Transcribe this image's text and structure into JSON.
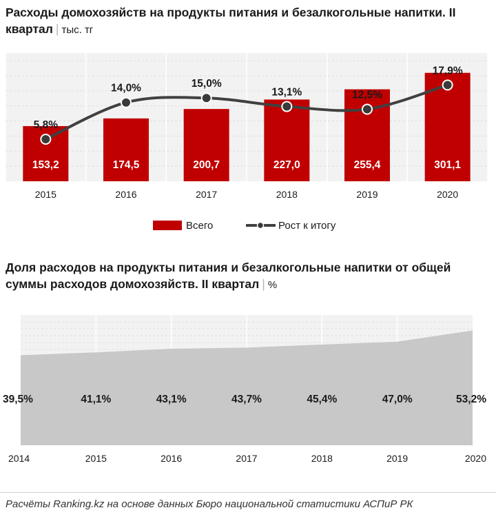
{
  "charts": {
    "top": {
      "title": "Расходы домохозяйств на продукты питания и безалкогольные напитки. II квартал",
      "separator": "|",
      "unit": "тыс. тг"
    },
    "bottom": {
      "title": "Доля расходов на продукты питания и безалкогольные напитки от общей суммы расходов домохозяйств. II квартал",
      "separator": "|",
      "unit": "%"
    }
  },
  "footer": {
    "source": "Расчёты Ranking.kz на основе данных Бюро национальной статистики АСПиР РК"
  },
  "chart_data": [
    {
      "type": "bar",
      "categories": [
        "2015",
        "2016",
        "2017",
        "2018",
        "2019",
        "2020"
      ],
      "series": [
        {
          "name": "Всего",
          "type": "bar",
          "values": [
            153.2,
            174.5,
            200.7,
            227.0,
            255.4,
            301.1
          ],
          "value_labels": [
            "153,2",
            "174,5",
            "200,7",
            "227,0",
            "255,4",
            "301,1"
          ],
          "color": "#c00000"
        },
        {
          "name": "Рост к итогу",
          "type": "line",
          "values": [
            5.8,
            14.0,
            15.0,
            13.1,
            12.5,
            17.9
          ],
          "value_labels": [
            "5,8%",
            "14,0%",
            "15,0%",
            "13,1%",
            "12,5%",
            "17,9%"
          ],
          "color": "#404040"
        }
      ],
      "legend_position": "bottom",
      "grid": true
    },
    {
      "type": "area",
      "categories": [
        "2014",
        "2015",
        "2016",
        "2017",
        "2018",
        "2019",
        "2020"
      ],
      "series": [
        {
          "values": [
            39.5,
            41.1,
            43.1,
            43.7,
            45.4,
            47.0,
            53.2
          ],
          "value_labels": [
            "39,5%",
            "41,1%",
            "43,1%",
            "43,7%",
            "45,4%",
            "47,0%",
            "53,2%"
          ],
          "color": "#c8c8c8"
        }
      ],
      "grid": true
    }
  ]
}
